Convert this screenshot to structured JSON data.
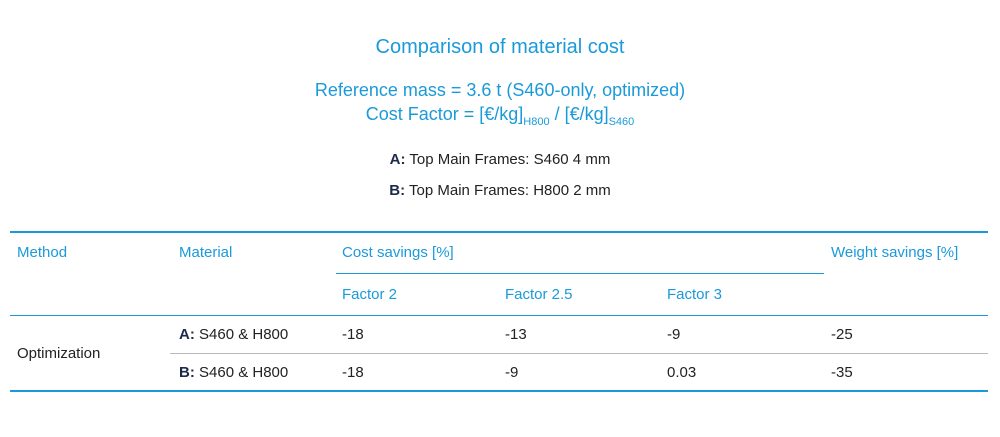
{
  "title": "Comparison of material cost",
  "subtitle_line1": "Reference mass = 3.6 t (S460-only, optimized)",
  "cost_factor": {
    "prefix": "Cost Factor = [€/kg]",
    "sub1": "H800",
    "mid": " / [€/kg]",
    "sub2": "S460"
  },
  "legend": [
    {
      "key": "A:",
      "text": "Top Main Frames: S460  4 mm"
    },
    {
      "key": "B:",
      "text": "Top Main Frames: H800  2 mm"
    }
  ],
  "table": {
    "headers": {
      "method": "Method",
      "material": "Material",
      "cost_savings": "Cost savings [%]",
      "weight_savings": "Weight savings [%]",
      "factors": [
        "Factor 2",
        "Factor 2.5",
        "Factor 3"
      ]
    },
    "method_value": "Optimization",
    "rows": [
      {
        "key": "A:",
        "material": "S460 & H800",
        "f2": "-18",
        "f25": "-13",
        "f3": "-9",
        "weight": "-25"
      },
      {
        "key": "B:",
        "material": "S460 & H800",
        "f2": "-18",
        "f25": "-9",
        "f3": "0.03",
        "weight": "-35"
      }
    ]
  },
  "colors": {
    "accent": "#1a9ad9",
    "text": "#222222",
    "key": "#1d2a4a",
    "row_divider": "#b9b9b9"
  }
}
